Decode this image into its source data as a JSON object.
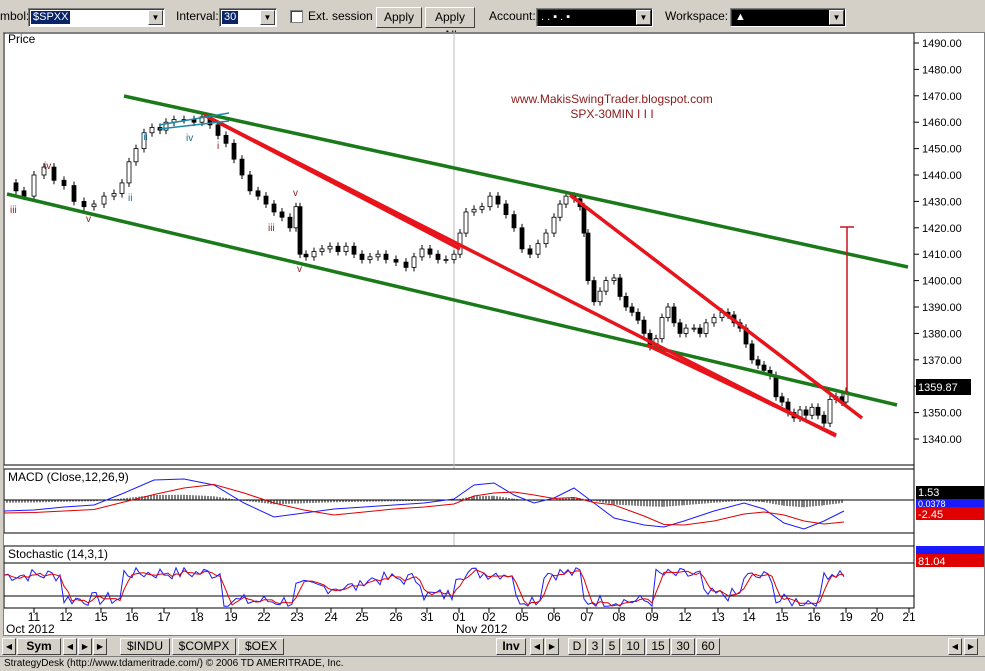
{
  "toolbar": {
    "symbol_label": "mbol:",
    "symbol_value": "$SPXX",
    "interval_label": "Interval:",
    "interval_value": "30",
    "ext_session_label": "Ext. session",
    "apply_label": "Apply",
    "apply_all_label": "Apply All",
    "account_label": "Account:",
    "account_value": ".  .  ▪  .  ▪",
    "workspace_label": "Workspace:",
    "workspace_value": "▲"
  },
  "price_pane": {
    "title": "Price",
    "annotation_line1": "www.MakisSwingTrader.blogspot.com",
    "annotation_line2": "SPX-30MIN I I I",
    "y_ticks": [
      "1490.00",
      "1480.00",
      "1470.00",
      "1460.00",
      "1450.00",
      "1440.00",
      "1430.00",
      "1420.00",
      "1410.00",
      "1400.00",
      "1390.00",
      "1380.00",
      "1370.00",
      "1360.00",
      "1350.00",
      "1340.00"
    ],
    "current_price": "1359.87",
    "wave_labels": [
      "iii",
      "iv",
      "v",
      "ii",
      "iii",
      "iv",
      "i",
      "v",
      "iii",
      "v"
    ]
  },
  "macd_pane": {
    "title": "MACD (Close,12,26,9)",
    "value1": "1.53",
    "value2": "0.0378",
    "value3": "-2.45"
  },
  "stoch_pane": {
    "title": "Stochastic (14,3,1)",
    "value1": "81.04"
  },
  "x_axis": {
    "ticks": [
      "11",
      "12",
      "15",
      "16",
      "17",
      "18",
      "19",
      "22",
      "23",
      "24",
      "25",
      "26",
      "31",
      "01",
      "02",
      "05",
      "06",
      "07",
      "08",
      "09",
      "12",
      "13",
      "14",
      "15",
      "16",
      "19",
      "20",
      "21"
    ],
    "month1": "Oct 2012",
    "month2": "Nov 2012"
  },
  "bottom_tabs": {
    "sym": "Sym",
    "indu": "$INDU",
    "compx": "$COMPX",
    "oex": "$OEX",
    "inv": "Inv",
    "d": "D",
    "i3": "3",
    "i5": "5",
    "i10": "10",
    "i15": "15",
    "i30": "30",
    "i60": "60"
  },
  "status_text": "StrategyDesk (http://www.tdameritrade.com/) © 2006 TD AMERITRADE, Inc.",
  "colors": {
    "channel": "#1a7a1a",
    "wedge": "#e8141c",
    "annotation": "#8b1a1a",
    "macd_line": "#1a1aff",
    "signal_line": "#e00000"
  }
}
